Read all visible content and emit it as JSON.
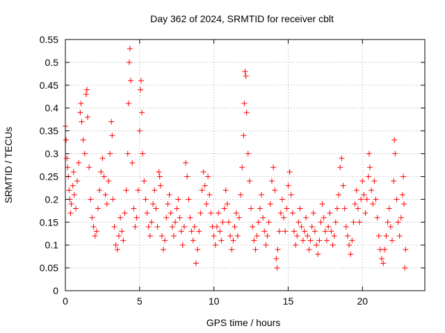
{
  "chart_data": {
    "type": "scatter",
    "title": "Day 362 of 2024, SRMTID for receiver cblt",
    "xlabel": "GPS time / hours",
    "ylabel": "SRMTID / TECUs",
    "xlim": [
      0,
      24.2
    ],
    "ylim": [
      0,
      0.55
    ],
    "grid": true,
    "marker": "plus",
    "color": "#ff0000",
    "x_ticks": [
      0,
      5,
      10,
      15,
      20
    ],
    "x_tick_labels": [
      "0",
      "5",
      "10",
      "15",
      "20"
    ],
    "y_ticks": [
      0,
      0.05,
      0.1,
      0.15,
      0.2,
      0.25,
      0.3,
      0.35,
      0.4,
      0.45,
      0.5,
      0.55
    ],
    "y_tick_labels": [
      "0",
      "0.05",
      "0.1",
      "0.15",
      "0.2",
      "0.25",
      "0.3",
      "0.35",
      "0.4",
      "0.45",
      "0.5",
      "0.55"
    ],
    "series": [
      {
        "name": "SRMTID",
        "points": [
          [
            0.0,
            0.36
          ],
          [
            0.05,
            0.33
          ],
          [
            0.1,
            0.29
          ],
          [
            0.15,
            0.27
          ],
          [
            0.2,
            0.25
          ],
          [
            0.25,
            0.22
          ],
          [
            0.3,
            0.2
          ],
          [
            0.35,
            0.17
          ],
          [
            0.4,
            0.19
          ],
          [
            0.5,
            0.23
          ],
          [
            0.55,
            0.26
          ],
          [
            0.6,
            0.21
          ],
          [
            0.7,
            0.18
          ],
          [
            0.8,
            0.24
          ],
          [
            0.9,
            0.28
          ],
          [
            1.0,
            0.39
          ],
          [
            1.05,
            0.41
          ],
          [
            1.1,
            0.37
          ],
          [
            1.2,
            0.33
          ],
          [
            1.3,
            0.3
          ],
          [
            1.4,
            0.43
          ],
          [
            1.45,
            0.44
          ],
          [
            1.5,
            0.38
          ],
          [
            1.6,
            0.27
          ],
          [
            1.7,
            0.2
          ],
          [
            1.8,
            0.16
          ],
          [
            1.9,
            0.14
          ],
          [
            2.0,
            0.12
          ],
          [
            2.1,
            0.13
          ],
          [
            2.2,
            0.18
          ],
          [
            2.3,
            0.22
          ],
          [
            2.4,
            0.26
          ],
          [
            2.5,
            0.29
          ],
          [
            2.6,
            0.25
          ],
          [
            2.7,
            0.21
          ],
          [
            2.8,
            0.19
          ],
          [
            2.9,
            0.24
          ],
          [
            3.0,
            0.3
          ],
          [
            3.1,
            0.37
          ],
          [
            3.15,
            0.34
          ],
          [
            3.2,
            0.2
          ],
          [
            3.3,
            0.14
          ],
          [
            3.4,
            0.1
          ],
          [
            3.5,
            0.09
          ],
          [
            3.6,
            0.12
          ],
          [
            3.7,
            0.16
          ],
          [
            3.8,
            0.13
          ],
          [
            3.9,
            0.11
          ],
          [
            4.0,
            0.17
          ],
          [
            4.1,
            0.22
          ],
          [
            4.2,
            0.3
          ],
          [
            4.25,
            0.41
          ],
          [
            4.3,
            0.5
          ],
          [
            4.35,
            0.53
          ],
          [
            4.4,
            0.46
          ],
          [
            4.5,
            0.28
          ],
          [
            4.6,
            0.18
          ],
          [
            4.7,
            0.14
          ],
          [
            4.8,
            0.16
          ],
          [
            4.9,
            0.22
          ],
          [
            5.0,
            0.35
          ],
          [
            5.05,
            0.44
          ],
          [
            5.1,
            0.46
          ],
          [
            5.15,
            0.39
          ],
          [
            5.2,
            0.3
          ],
          [
            5.3,
            0.24
          ],
          [
            5.4,
            0.2
          ],
          [
            5.5,
            0.17
          ],
          [
            5.6,
            0.14
          ],
          [
            5.7,
            0.12
          ],
          [
            5.8,
            0.15
          ],
          [
            5.9,
            0.19
          ],
          [
            6.0,
            0.22
          ],
          [
            6.1,
            0.18
          ],
          [
            6.2,
            0.14
          ],
          [
            6.3,
            0.26
          ],
          [
            6.35,
            0.25
          ],
          [
            6.4,
            0.23
          ],
          [
            6.5,
            0.12
          ],
          [
            6.6,
            0.09
          ],
          [
            6.7,
            0.11
          ],
          [
            6.8,
            0.16
          ],
          [
            6.9,
            0.19
          ],
          [
            7.0,
            0.21
          ],
          [
            7.1,
            0.17
          ],
          [
            7.2,
            0.14
          ],
          [
            7.3,
            0.12
          ],
          [
            7.4,
            0.15
          ],
          [
            7.5,
            0.18
          ],
          [
            7.6,
            0.2
          ],
          [
            7.7,
            0.16
          ],
          [
            7.8,
            0.13
          ],
          [
            7.9,
            0.1
          ],
          [
            8.0,
            0.14
          ],
          [
            8.1,
            0.28
          ],
          [
            8.2,
            0.25
          ],
          [
            8.3,
            0.2
          ],
          [
            8.4,
            0.16
          ],
          [
            8.5,
            0.13
          ],
          [
            8.6,
            0.11
          ],
          [
            8.7,
            0.14
          ],
          [
            8.8,
            0.06
          ],
          [
            8.9,
            0.09
          ],
          [
            9.0,
            0.13
          ],
          [
            9.1,
            0.17
          ],
          [
            9.2,
            0.22
          ],
          [
            9.3,
            0.26
          ],
          [
            9.4,
            0.23
          ],
          [
            9.5,
            0.19
          ],
          [
            9.6,
            0.25
          ],
          [
            9.7,
            0.21
          ],
          [
            9.8,
            0.17
          ],
          [
            9.9,
            0.14
          ],
          [
            10.0,
            0.12
          ],
          [
            10.1,
            0.1
          ],
          [
            10.2,
            0.14
          ],
          [
            10.3,
            0.17
          ],
          [
            10.4,
            0.13
          ],
          [
            10.5,
            0.11
          ],
          [
            10.6,
            0.15
          ],
          [
            10.7,
            0.18
          ],
          [
            10.8,
            0.22
          ],
          [
            10.9,
            0.19
          ],
          [
            11.0,
            0.15
          ],
          [
            11.1,
            0.12
          ],
          [
            11.2,
            0.09
          ],
          [
            11.3,
            0.11
          ],
          [
            11.4,
            0.14
          ],
          [
            11.5,
            0.17
          ],
          [
            11.6,
            0.12
          ],
          [
            11.7,
            0.16
          ],
          [
            11.8,
            0.21
          ],
          [
            11.9,
            0.27
          ],
          [
            12.0,
            0.34
          ],
          [
            12.05,
            0.41
          ],
          [
            12.1,
            0.48
          ],
          [
            12.15,
            0.47
          ],
          [
            12.2,
            0.39
          ],
          [
            12.3,
            0.3
          ],
          [
            12.4,
            0.24
          ],
          [
            12.5,
            0.18
          ],
          [
            12.6,
            0.14
          ],
          [
            12.7,
            0.11
          ],
          [
            12.8,
            0.09
          ],
          [
            12.9,
            0.12
          ],
          [
            13.0,
            0.15
          ],
          [
            13.1,
            0.18
          ],
          [
            13.2,
            0.21
          ],
          [
            13.3,
            0.16
          ],
          [
            13.4,
            0.13
          ],
          [
            13.5,
            0.1
          ],
          [
            13.6,
            0.12
          ],
          [
            13.7,
            0.15
          ],
          [
            13.8,
            0.19
          ],
          [
            13.9,
            0.24
          ],
          [
            14.0,
            0.27
          ],
          [
            14.1,
            0.22
          ],
          [
            14.2,
            0.07
          ],
          [
            14.25,
            0.05
          ],
          [
            14.3,
            0.09
          ],
          [
            14.4,
            0.13
          ],
          [
            14.5,
            0.17
          ],
          [
            14.6,
            0.2
          ],
          [
            14.7,
            0.16
          ],
          [
            14.8,
            0.13
          ],
          [
            14.9,
            0.18
          ],
          [
            15.0,
            0.23
          ],
          [
            15.1,
            0.26
          ],
          [
            15.2,
            0.21
          ],
          [
            15.3,
            0.17
          ],
          [
            15.4,
            0.13
          ],
          [
            15.5,
            0.1
          ],
          [
            15.6,
            0.12
          ],
          [
            15.7,
            0.15
          ],
          [
            15.8,
            0.18
          ],
          [
            15.9,
            0.14
          ],
          [
            16.0,
            0.11
          ],
          [
            16.1,
            0.13
          ],
          [
            16.2,
            0.16
          ],
          [
            16.3,
            0.12
          ],
          [
            16.4,
            0.09
          ],
          [
            16.5,
            0.11
          ],
          [
            16.6,
            0.14
          ],
          [
            16.7,
            0.17
          ],
          [
            16.8,
            0.13
          ],
          [
            16.9,
            0.1
          ],
          [
            17.0,
            0.08
          ],
          [
            17.1,
            0.11
          ],
          [
            17.2,
            0.15
          ],
          [
            17.3,
            0.19
          ],
          [
            17.4,
            0.16
          ],
          [
            17.5,
            0.13
          ],
          [
            17.6,
            0.11
          ],
          [
            17.7,
            0.14
          ],
          [
            17.8,
            0.17
          ],
          [
            17.9,
            0.13
          ],
          [
            18.0,
            0.1
          ],
          [
            18.1,
            0.12
          ],
          [
            18.2,
            0.15
          ],
          [
            18.3,
            0.18
          ],
          [
            18.4,
            0.21
          ],
          [
            18.5,
            0.27
          ],
          [
            18.6,
            0.29
          ],
          [
            18.7,
            0.23
          ],
          [
            18.8,
            0.18
          ],
          [
            18.9,
            0.14
          ],
          [
            19.0,
            0.12
          ],
          [
            19.1,
            0.1
          ],
          [
            19.2,
            0.08
          ],
          [
            19.3,
            0.11
          ],
          [
            19.4,
            0.15
          ],
          [
            19.5,
            0.19
          ],
          [
            19.6,
            0.22
          ],
          [
            19.7,
            0.18
          ],
          [
            19.8,
            0.15
          ],
          [
            19.9,
            0.2
          ],
          [
            20.0,
            0.24
          ],
          [
            20.1,
            0.21
          ],
          [
            20.2,
            0.17
          ],
          [
            20.3,
            0.2
          ],
          [
            20.4,
            0.25
          ],
          [
            20.45,
            0.3
          ],
          [
            20.5,
            0.27
          ],
          [
            20.6,
            0.22
          ],
          [
            20.7,
            0.19
          ],
          [
            20.8,
            0.24
          ],
          [
            20.9,
            0.2
          ],
          [
            21.0,
            0.16
          ],
          [
            21.1,
            0.12
          ],
          [
            21.2,
            0.09
          ],
          [
            21.3,
            0.07
          ],
          [
            21.4,
            0.06
          ],
          [
            21.5,
            0.09
          ],
          [
            21.6,
            0.12
          ],
          [
            21.7,
            0.15
          ],
          [
            21.8,
            0.18
          ],
          [
            21.9,
            0.14
          ],
          [
            22.0,
            0.11
          ],
          [
            22.1,
            0.24
          ],
          [
            22.15,
            0.33
          ],
          [
            22.2,
            0.3
          ],
          [
            22.3,
            0.2
          ],
          [
            22.4,
            0.15
          ],
          [
            22.5,
            0.12
          ],
          [
            22.6,
            0.16
          ],
          [
            22.7,
            0.21
          ],
          [
            22.75,
            0.25
          ],
          [
            22.8,
            0.19
          ],
          [
            22.85,
            0.05
          ],
          [
            22.9,
            0.09
          ]
        ]
      }
    ]
  }
}
